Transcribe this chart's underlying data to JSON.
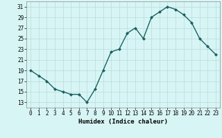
{
  "x": [
    0,
    1,
    2,
    3,
    4,
    5,
    6,
    7,
    8,
    9,
    10,
    11,
    12,
    13,
    14,
    15,
    16,
    17,
    18,
    19,
    20,
    21,
    22,
    23
  ],
  "y": [
    19,
    18,
    17,
    15.5,
    15,
    14.5,
    14.5,
    13,
    15.5,
    19,
    22.5,
    23,
    26,
    27,
    25,
    29,
    30,
    31,
    30.5,
    29.5,
    28,
    25,
    23.5,
    22
  ],
  "line_color": "#1a6060",
  "marker": "D",
  "marker_size": 2.0,
  "bg_color": "#d8f5f5",
  "grid_color": "#b8dada",
  "xlabel": "Humidex (Indice chaleur)",
  "xlim": [
    -0.5,
    23.5
  ],
  "ylim": [
    12,
    32
  ],
  "yticks": [
    13,
    15,
    17,
    19,
    21,
    23,
    25,
    27,
    29,
    31
  ],
  "xticks": [
    0,
    1,
    2,
    3,
    4,
    5,
    6,
    7,
    8,
    9,
    10,
    11,
    12,
    13,
    14,
    15,
    16,
    17,
    18,
    19,
    20,
    21,
    22,
    23
  ],
  "xlabel_fontsize": 6.5,
  "tick_fontsize": 5.5,
  "line_width": 1.0
}
